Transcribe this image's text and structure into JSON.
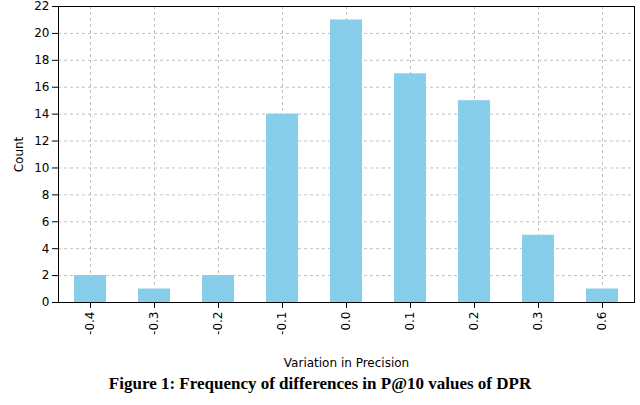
{
  "chart_data": {
    "type": "bar",
    "title": "Figure 1: Frequency of differences in P@10 values of DPR",
    "x_label": "Variation in Precision",
    "y_label": "Count",
    "categories": [
      "-0.4",
      "-0.3",
      "-0.2",
      "-0.1",
      "0.0",
      "0.1",
      "0.2",
      "0.3",
      "0.6"
    ],
    "values": [
      2,
      1,
      2,
      14,
      21,
      17,
      15,
      5,
      1
    ],
    "color": "#87ceeb",
    "ylim": [
      0,
      22
    ],
    "yticks": [
      0,
      2,
      4,
      6,
      8,
      10,
      12,
      14,
      16,
      18,
      20,
      22
    ],
    "grid": true
  }
}
